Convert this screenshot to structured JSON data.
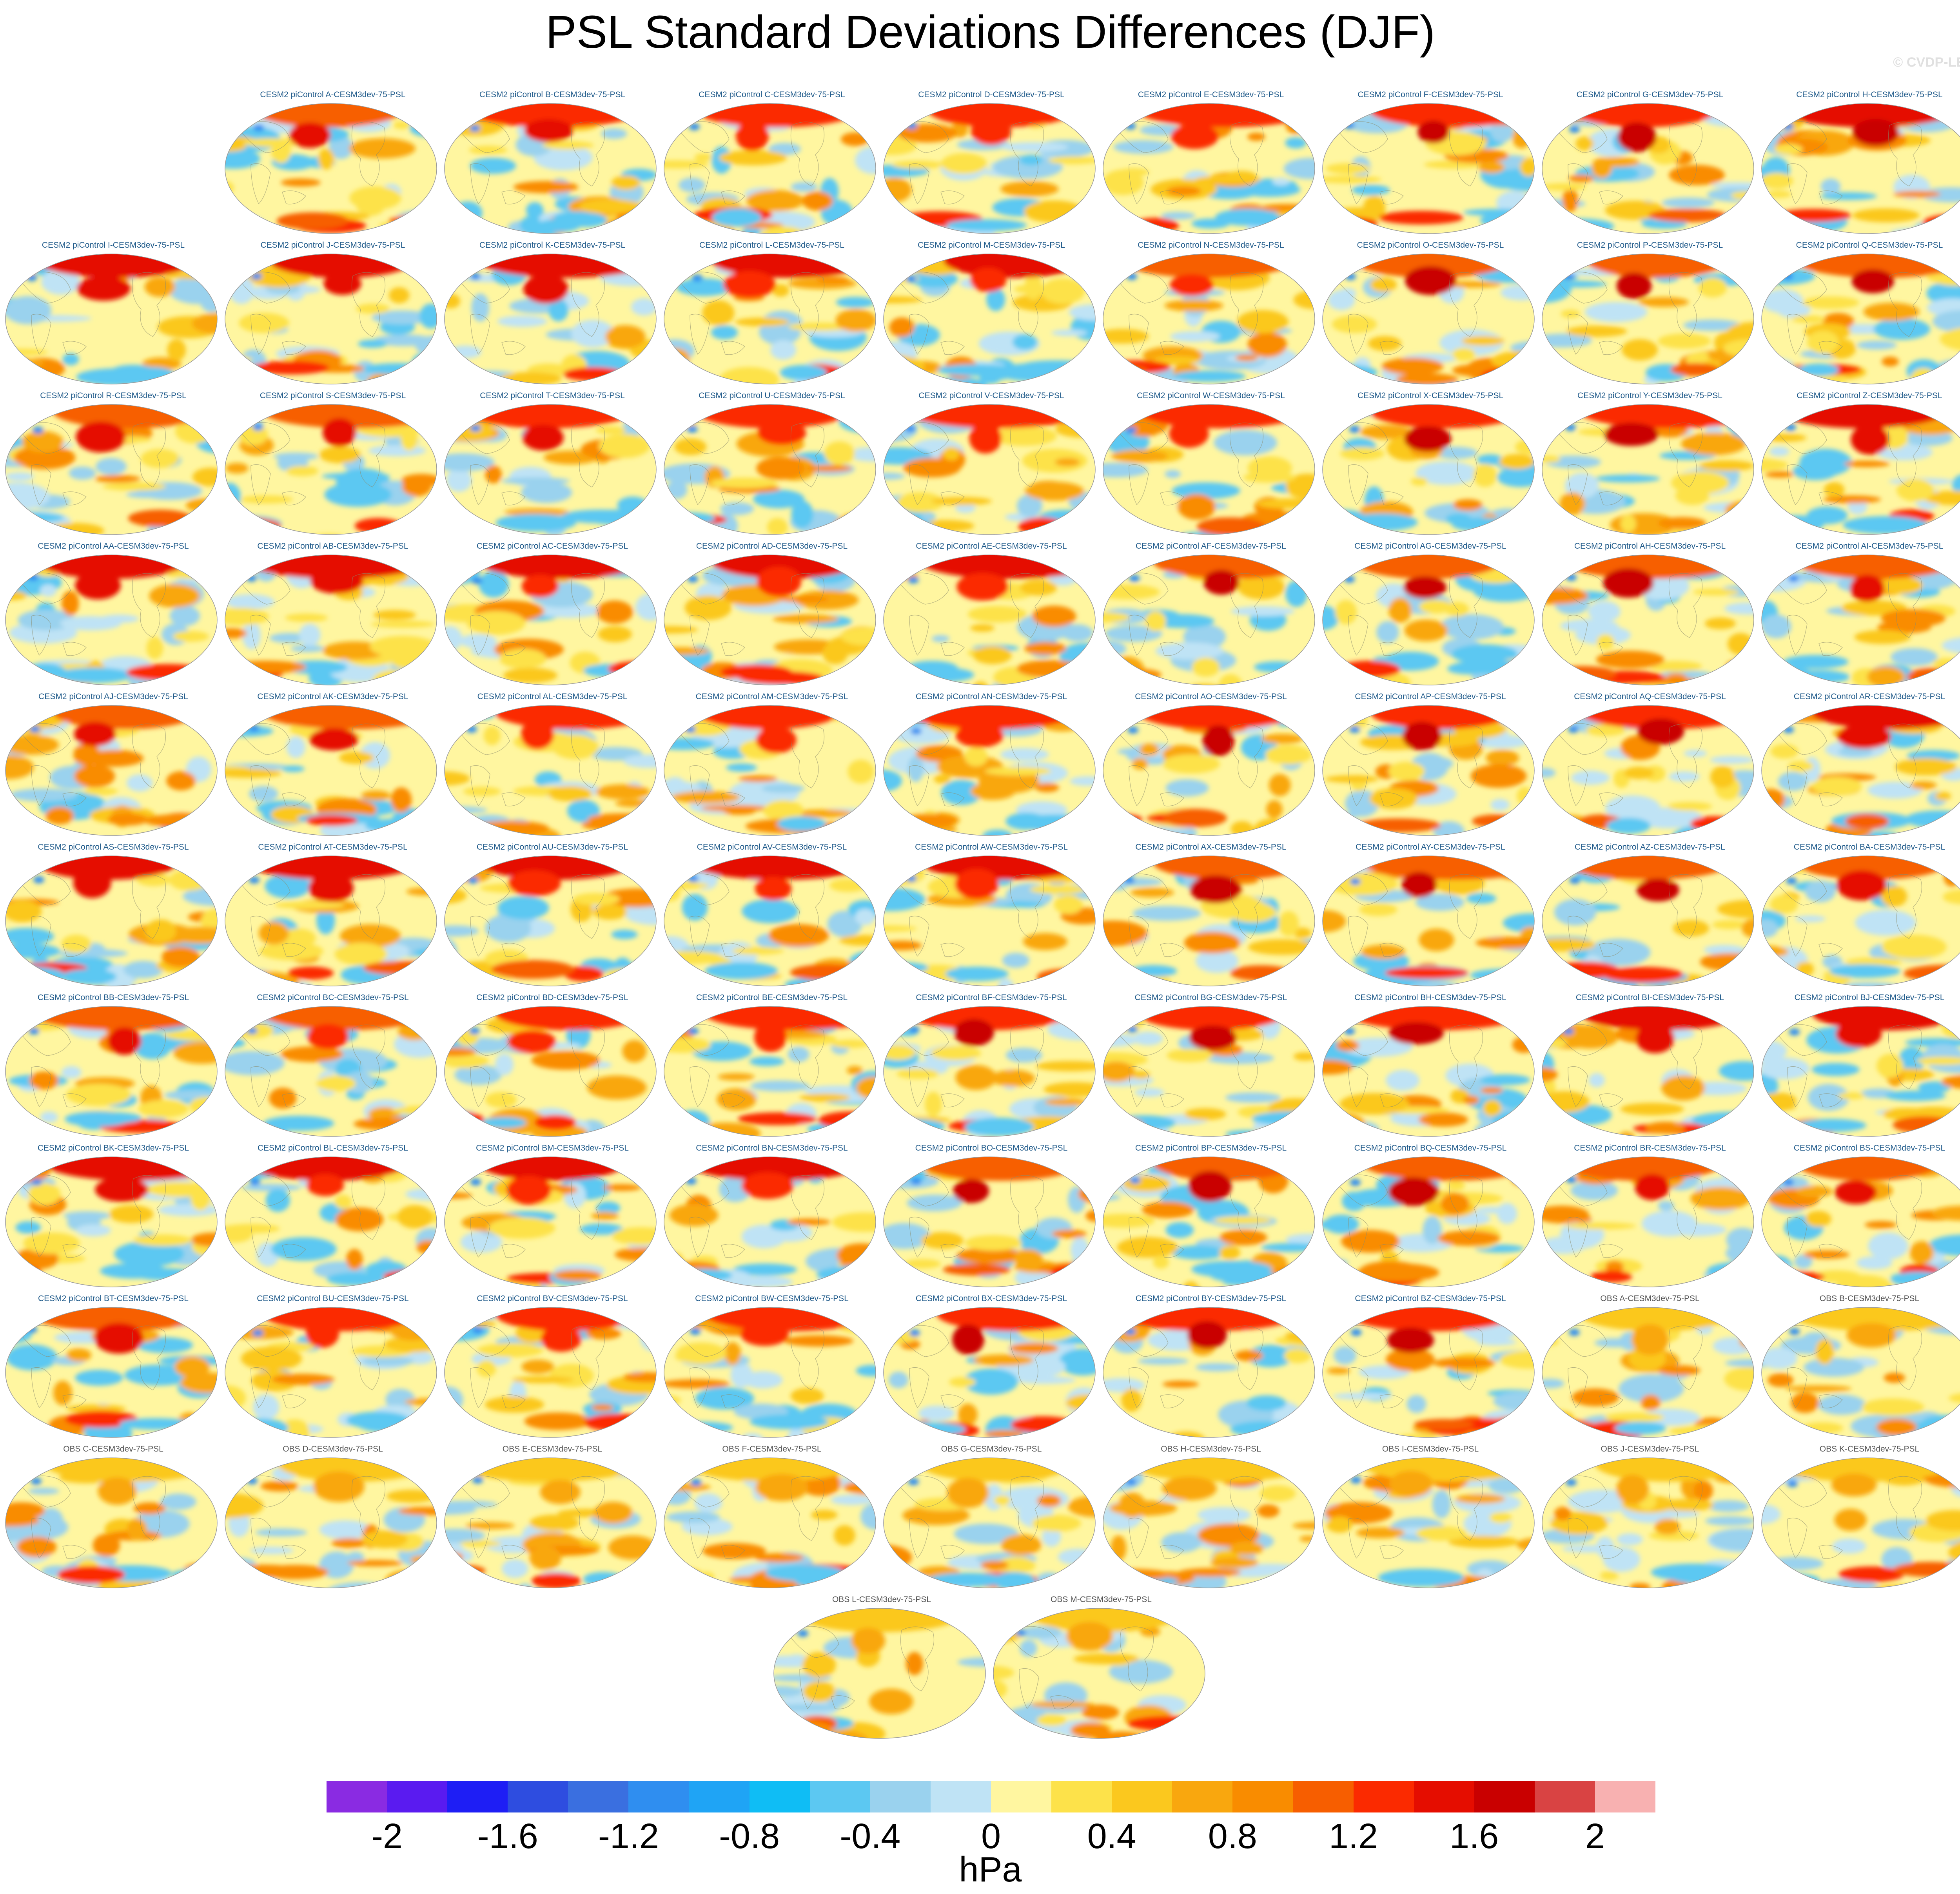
{
  "title": "PSL Standard Deviations Differences (DJF)",
  "watermark": "© CVDP-LE",
  "units": "hPa",
  "colorbar": {
    "colors": [
      "#8a2be2",
      "#5a1bf0",
      "#1e1ef5",
      "#2e4de0",
      "#3a6fe0",
      "#2f8ef0",
      "#1fa4f5",
      "#0fbdf5",
      "#5cc8f2",
      "#9ad2ee",
      "#bfe3f5",
      "#fff6a0",
      "#fde24a",
      "#fbc81e",
      "#f9a70e",
      "#f98c00",
      "#f75e00",
      "#fb2a00",
      "#e50d00",
      "#c90000",
      "#d94343",
      "#f8b1b1"
    ],
    "tick_labels": [
      "-2",
      "-1.6",
      "-1.2",
      "-0.8",
      "-0.4",
      "0",
      "0.4",
      "0.8",
      "1.2",
      "1.6",
      "2"
    ]
  },
  "panels": [
    "CESM2 piControl A-CESM3dev-75-PSL",
    "CESM2 piControl B-CESM3dev-75-PSL",
    "CESM2 piControl C-CESM3dev-75-PSL",
    "CESM2 piControl D-CESM3dev-75-PSL",
    "CESM2 piControl E-CESM3dev-75-PSL",
    "CESM2 piControl F-CESM3dev-75-PSL",
    "CESM2 piControl G-CESM3dev-75-PSL",
    "CESM2 piControl H-CESM3dev-75-PSL",
    "CESM2 piControl I-CESM3dev-75-PSL",
    "CESM2 piControl J-CESM3dev-75-PSL",
    "CESM2 piControl K-CESM3dev-75-PSL",
    "CESM2 piControl L-CESM3dev-75-PSL",
    "CESM2 piControl M-CESM3dev-75-PSL",
    "CESM2 piControl N-CESM3dev-75-PSL",
    "CESM2 piControl O-CESM3dev-75-PSL",
    "CESM2 piControl P-CESM3dev-75-PSL",
    "CESM2 piControl Q-CESM3dev-75-PSL",
    "CESM2 piControl R-CESM3dev-75-PSL",
    "CESM2 piControl S-CESM3dev-75-PSL",
    "CESM2 piControl T-CESM3dev-75-PSL",
    "CESM2 piControl U-CESM3dev-75-PSL",
    "CESM2 piControl V-CESM3dev-75-PSL",
    "CESM2 piControl W-CESM3dev-75-PSL",
    "CESM2 piControl X-CESM3dev-75-PSL",
    "CESM2 piControl Y-CESM3dev-75-PSL",
    "CESM2 piControl Z-CESM3dev-75-PSL",
    "CESM2 piControl AA-CESM3dev-75-PSL",
    "CESM2 piControl AB-CESM3dev-75-PSL",
    "CESM2 piControl AC-CESM3dev-75-PSL",
    "CESM2 piControl AD-CESM3dev-75-PSL",
    "CESM2 piControl AE-CESM3dev-75-PSL",
    "CESM2 piControl AF-CESM3dev-75-PSL",
    "CESM2 piControl AG-CESM3dev-75-PSL",
    "CESM2 piControl AH-CESM3dev-75-PSL",
    "CESM2 piControl AI-CESM3dev-75-PSL",
    "CESM2 piControl AJ-CESM3dev-75-PSL",
    "CESM2 piControl AK-CESM3dev-75-PSL",
    "CESM2 piControl AL-CESM3dev-75-PSL",
    "CESM2 piControl AM-CESM3dev-75-PSL",
    "CESM2 piControl AN-CESM3dev-75-PSL",
    "CESM2 piControl AO-CESM3dev-75-PSL",
    "CESM2 piControl AP-CESM3dev-75-PSL",
    "CESM2 piControl AQ-CESM3dev-75-PSL",
    "CESM2 piControl AR-CESM3dev-75-PSL",
    "CESM2 piControl AS-CESM3dev-75-PSL",
    "CESM2 piControl AT-CESM3dev-75-PSL",
    "CESM2 piControl AU-CESM3dev-75-PSL",
    "CESM2 piControl AV-CESM3dev-75-PSL",
    "CESM2 piControl AW-CESM3dev-75-PSL",
    "CESM2 piControl AX-CESM3dev-75-PSL",
    "CESM2 piControl AY-CESM3dev-75-PSL",
    "CESM2 piControl AZ-CESM3dev-75-PSL",
    "CESM2 piControl BA-CESM3dev-75-PSL",
    "CESM2 piControl BB-CESM3dev-75-PSL",
    "CESM2 piControl BC-CESM3dev-75-PSL",
    "CESM2 piControl BD-CESM3dev-75-PSL",
    "CESM2 piControl BE-CESM3dev-75-PSL",
    "CESM2 piControl BF-CESM3dev-75-PSL",
    "CESM2 piControl BG-CESM3dev-75-PSL",
    "CESM2 piControl BH-CESM3dev-75-PSL",
    "CESM2 piControl BI-CESM3dev-75-PSL",
    "CESM2 piControl BJ-CESM3dev-75-PSL",
    "CESM2 piControl BK-CESM3dev-75-PSL",
    "CESM2 piControl BL-CESM3dev-75-PSL",
    "CESM2 piControl BM-CESM3dev-75-PSL",
    "CESM2 piControl BN-CESM3dev-75-PSL",
    "CESM2 piControl BO-CESM3dev-75-PSL",
    "CESM2 piControl BP-CESM3dev-75-PSL",
    "CESM2 piControl BQ-CESM3dev-75-PSL",
    "CESM2 piControl BR-CESM3dev-75-PSL",
    "CESM2 piControl BS-CESM3dev-75-PSL",
    "CESM2 piControl BT-CESM3dev-75-PSL",
    "CESM2 piControl BU-CESM3dev-75-PSL",
    "CESM2 piControl BV-CESM3dev-75-PSL",
    "CESM2 piControl BW-CESM3dev-75-PSL",
    "CESM2 piControl BX-CESM3dev-75-PSL",
    "CESM2 piControl BY-CESM3dev-75-PSL",
    "CESM2 piControl BZ-CESM3dev-75-PSL",
    "OBS A-CESM3dev-75-PSL",
    "OBS B-CESM3dev-75-PSL",
    "OBS C-CESM3dev-75-PSL",
    "OBS D-CESM3dev-75-PSL",
    "OBS E-CESM3dev-75-PSL",
    "OBS F-CESM3dev-75-PSL",
    "OBS G-CESM3dev-75-PSL",
    "OBS H-CESM3dev-75-PSL",
    "OBS I-CESM3dev-75-PSL",
    "OBS J-CESM3dev-75-PSL",
    "OBS K-CESM3dev-75-PSL",
    "OBS L-CESM3dev-75-PSL",
    "OBS M-CESM3dev-75-PSL"
  ]
}
